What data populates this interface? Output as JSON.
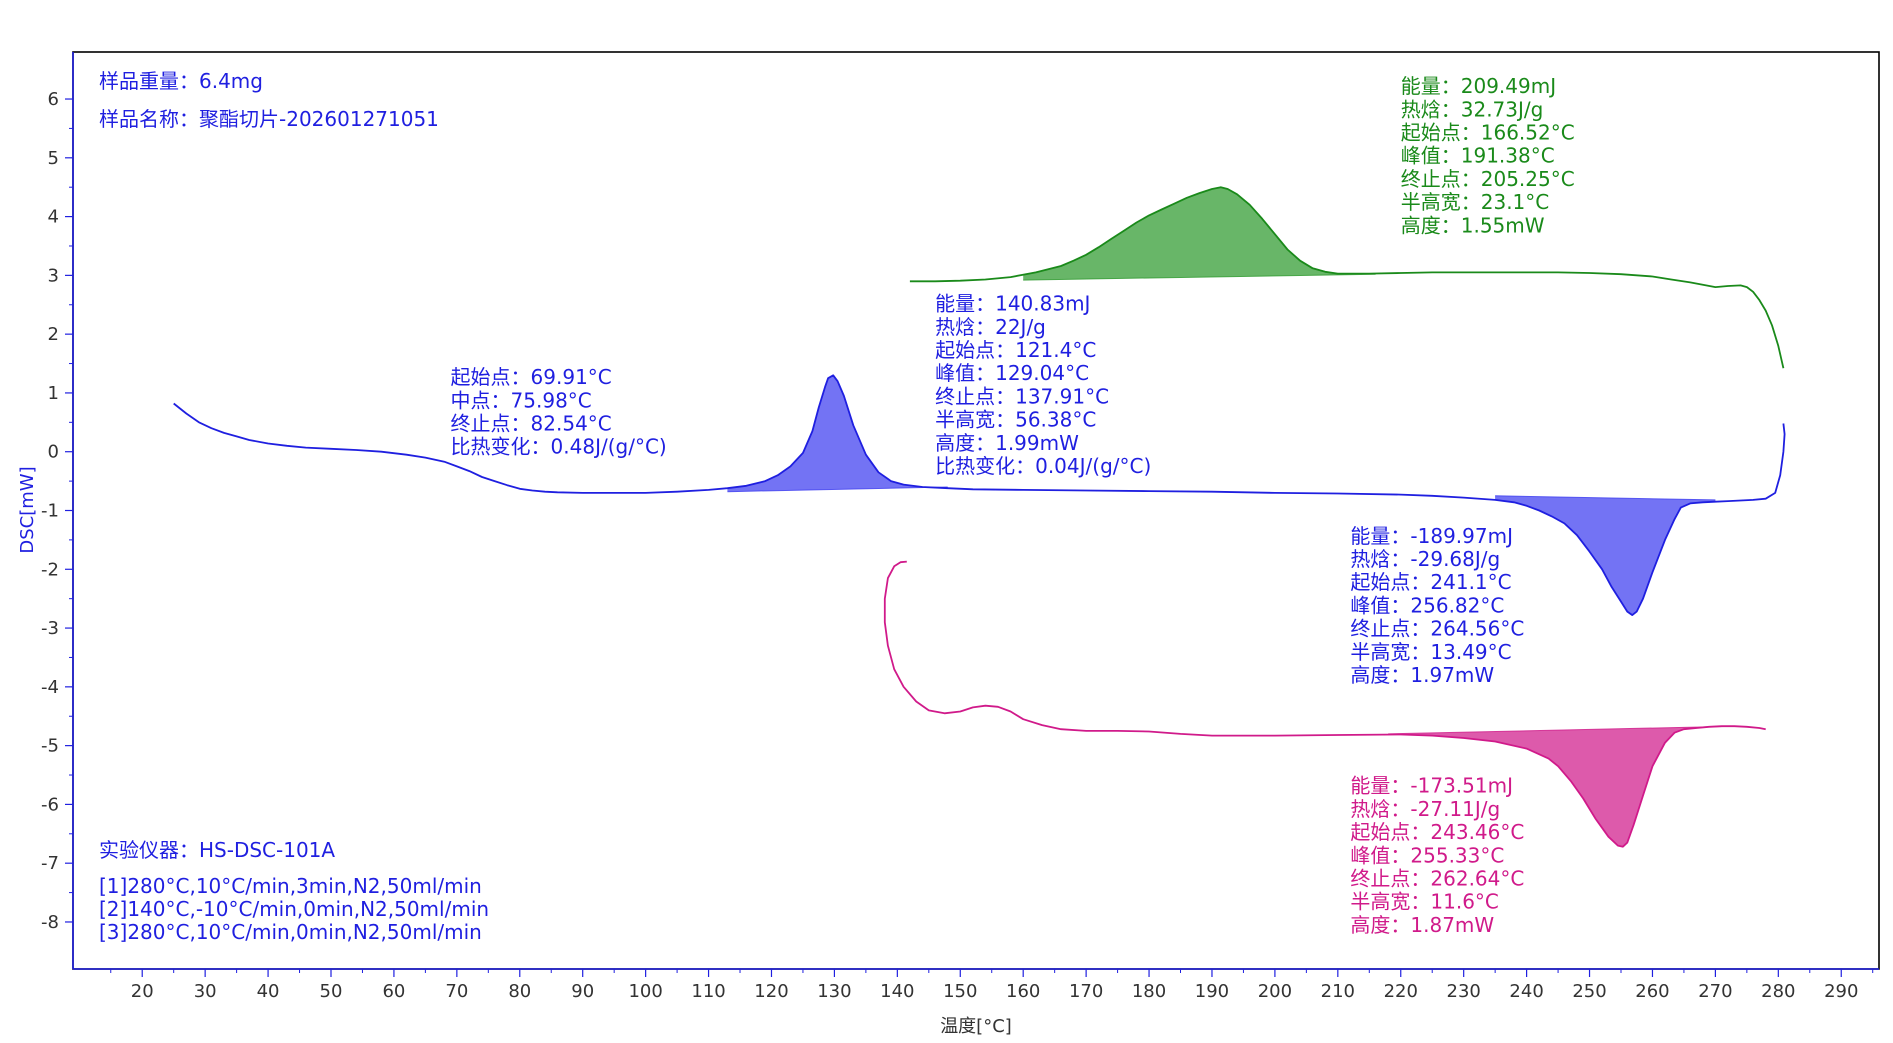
{
  "chart_data": {
    "type": "line",
    "title": "",
    "xlabel": "温度[°C]",
    "ylabel": "DSC[mW]",
    "xlim": [
      9,
      296
    ],
    "ylim": [
      -8.8,
      6.8
    ],
    "xticks": [
      20,
      30,
      40,
      50,
      60,
      70,
      80,
      90,
      100,
      110,
      120,
      130,
      140,
      150,
      160,
      170,
      180,
      190,
      200,
      210,
      220,
      230,
      240,
      250,
      260,
      270,
      280,
      290
    ],
    "yticks": [
      -8,
      -7,
      -6,
      -5,
      -4,
      -3,
      -2,
      -1,
      0,
      1,
      2,
      3,
      4,
      5,
      6
    ],
    "grid": false,
    "legend": "none",
    "info": {
      "sample_weight": "样品重量：6.4mg",
      "sample_name": "样品名称：聚酯切片-202601271051",
      "instrument": "实验仪器：HS-DSC-101A",
      "segments": [
        "[1]280°C,10°C/min,3min,N2,50ml/min",
        "[2]140°C,-10°C/min,0min,N2,50ml/min",
        "[3]280°C,10°C/min,0min,N2,50ml/min"
      ]
    },
    "series": [
      {
        "id": "blue",
        "color": "#1f1fe0",
        "x": [
          25,
          27,
          29,
          31,
          33,
          35,
          37,
          40,
          43,
          46,
          50,
          54,
          58,
          62,
          65,
          68,
          70,
          72,
          74,
          76,
          78,
          80,
          82,
          84,
          86,
          90,
          95,
          100,
          105,
          110,
          113,
          116,
          119,
          121,
          123,
          125,
          126.5,
          127.5,
          128.5,
          129,
          129.8,
          130.5,
          131.5,
          133,
          135,
          137,
          139,
          141,
          144,
          148,
          152,
          160,
          170,
          180,
          190,
          200,
          210,
          220,
          225,
          230,
          235,
          238,
          240,
          242,
          244,
          246,
          248,
          250,
          252,
          253.5,
          255,
          256,
          256.8,
          257.5,
          258.5,
          260,
          262,
          263.5,
          264.5,
          266,
          268,
          270,
          272,
          274,
          276,
          278,
          279.5,
          280.3,
          280.8,
          281,
          280.8
        ],
        "y": [
          0.82,
          0.65,
          0.5,
          0.4,
          0.32,
          0.26,
          0.2,
          0.14,
          0.1,
          0.07,
          0.05,
          0.03,
          0.0,
          -0.05,
          -0.1,
          -0.17,
          -0.25,
          -0.33,
          -0.43,
          -0.5,
          -0.57,
          -0.63,
          -0.66,
          -0.68,
          -0.69,
          -0.7,
          -0.7,
          -0.7,
          -0.68,
          -0.65,
          -0.62,
          -0.58,
          -0.5,
          -0.4,
          -0.25,
          -0.02,
          0.35,
          0.75,
          1.1,
          1.25,
          1.3,
          1.2,
          0.95,
          0.45,
          -0.05,
          -0.35,
          -0.5,
          -0.56,
          -0.6,
          -0.62,
          -0.64,
          -0.65,
          -0.66,
          -0.67,
          -0.68,
          -0.7,
          -0.71,
          -0.73,
          -0.75,
          -0.78,
          -0.82,
          -0.86,
          -0.92,
          -1.0,
          -1.1,
          -1.22,
          -1.42,
          -1.7,
          -2.0,
          -2.3,
          -2.55,
          -2.72,
          -2.78,
          -2.72,
          -2.5,
          -2.05,
          -1.5,
          -1.15,
          -0.95,
          -0.88,
          -0.86,
          -0.85,
          -0.84,
          -0.83,
          -0.82,
          -0.8,
          -0.7,
          -0.4,
          0.0,
          0.3,
          0.48
        ]
      },
      {
        "id": "green",
        "color": "#1a8a1a",
        "x": [
          142,
          146,
          150,
          154,
          158,
          162,
          166,
          168,
          170,
          172,
          174,
          176,
          178,
          180,
          182,
          184,
          186,
          188,
          190,
          191.4,
          192.5,
          194,
          196,
          198,
          200,
          202,
          204,
          206,
          208,
          210,
          215,
          220,
          225,
          230,
          235,
          240,
          245,
          250,
          255,
          260,
          263,
          266,
          268,
          270,
          272,
          274,
          275,
          276,
          277,
          278,
          279,
          280,
          280.8
        ],
        "y": [
          2.9,
          2.9,
          2.91,
          2.93,
          2.97,
          3.05,
          3.16,
          3.25,
          3.35,
          3.48,
          3.62,
          3.76,
          3.9,
          4.02,
          4.12,
          4.22,
          4.32,
          4.4,
          4.47,
          4.5,
          4.47,
          4.38,
          4.2,
          3.96,
          3.7,
          3.44,
          3.25,
          3.12,
          3.06,
          3.03,
          3.03,
          3.04,
          3.05,
          3.05,
          3.05,
          3.05,
          3.05,
          3.04,
          3.02,
          2.98,
          2.93,
          2.88,
          2.84,
          2.8,
          2.82,
          2.83,
          2.8,
          2.72,
          2.58,
          2.4,
          2.15,
          1.8,
          1.42
        ]
      },
      {
        "id": "magenta",
        "color": "#d01a8a",
        "x": [
          141.5,
          140.5,
          139.5,
          138.5,
          138,
          138,
          138.5,
          139.5,
          141,
          143,
          145,
          147.5,
          150,
          152,
          154,
          156,
          158,
          160,
          163,
          166,
          170,
          175,
          180,
          185,
          190,
          200,
          210,
          220,
          225,
          230,
          235,
          240,
          243.5,
          245,
          247,
          249,
          251,
          253,
          254.5,
          255.3,
          256,
          257,
          258.5,
          260,
          262,
          263.5,
          265,
          267,
          269,
          271,
          273,
          275,
          277,
          278
        ],
        "y": [
          -1.87,
          -1.88,
          -1.95,
          -2.15,
          -2.5,
          -2.9,
          -3.3,
          -3.7,
          -4.0,
          -4.25,
          -4.4,
          -4.45,
          -4.42,
          -4.35,
          -4.32,
          -4.34,
          -4.42,
          -4.55,
          -4.65,
          -4.72,
          -4.75,
          -4.75,
          -4.76,
          -4.8,
          -4.83,
          -4.83,
          -4.82,
          -4.81,
          -4.83,
          -4.87,
          -4.93,
          -5.05,
          -5.22,
          -5.35,
          -5.6,
          -5.9,
          -6.25,
          -6.55,
          -6.7,
          -6.72,
          -6.65,
          -6.35,
          -5.85,
          -5.35,
          -4.95,
          -4.78,
          -4.72,
          -4.7,
          -4.68,
          -4.67,
          -4.67,
          -4.68,
          -4.7,
          -4.72
        ]
      }
    ],
    "filled_peaks": [
      {
        "series": "blue",
        "x_start": 113,
        "x_end": 148,
        "baseline_y": [
          -0.68,
          -0.6
        ],
        "color": "#3d3df0"
      },
      {
        "series": "green",
        "x_start": 160,
        "x_end": 216,
        "baseline_y": [
          2.92,
          3.02
        ],
        "color": "#2e9a2e"
      },
      {
        "series": "blue",
        "x_start": 235,
        "x_end": 270,
        "baseline_y": [
          -0.75,
          -0.82
        ],
        "color": "#3d3df0"
      },
      {
        "series": "magenta",
        "x_start": 218,
        "x_end": 273,
        "baseline_y": [
          -4.8,
          -4.67
        ],
        "color": "#d01a8a"
      }
    ],
    "annotations": [
      {
        "color": "#1f1fe0",
        "x": 69,
        "y": 1.15,
        "lines": [
          "起始点：69.91°C",
          "中点：75.98°C",
          "终止点：82.54°C",
          "比热变化：0.48J/(g/°C)"
        ]
      },
      {
        "color": "#1f1fe0",
        "x": 146,
        "y": 2.4,
        "lines": [
          "能量：140.83mJ",
          "热焓：22J/g",
          "起始点：121.4°C",
          "峰值：129.04°C",
          "终止点：137.91°C",
          "半高宽：56.38°C",
          "高度：1.99mW",
          "比热变化：0.04J/(g/°C)"
        ]
      },
      {
        "color": "#1a8a1a",
        "x": 220,
        "y": 6.1,
        "lines": [
          "能量：209.49mJ",
          "热焓：32.73J/g",
          "起始点：166.52°C",
          "峰值：191.38°C",
          "终止点：205.25°C",
          "半高宽：23.1°C",
          "高度：1.55mW"
        ]
      },
      {
        "color": "#1f1fe0",
        "x": 212,
        "y": -1.55,
        "lines": [
          "能量：-189.97mJ",
          "热焓：-29.68J/g",
          "起始点：241.1°C",
          "峰值：256.82°C",
          "终止点：264.56°C",
          "半高宽：13.49°C",
          "高度：1.97mW"
        ]
      },
      {
        "color": "#d01a8a",
        "x": 212,
        "y": -5.8,
        "lines": [
          "能量：-173.51mJ",
          "热焓：-27.11J/g",
          "起始点：243.46°C",
          "峰值：255.33°C",
          "终止点：262.64°C",
          "半高宽：11.6°C",
          "高度：1.87mW"
        ]
      }
    ]
  }
}
